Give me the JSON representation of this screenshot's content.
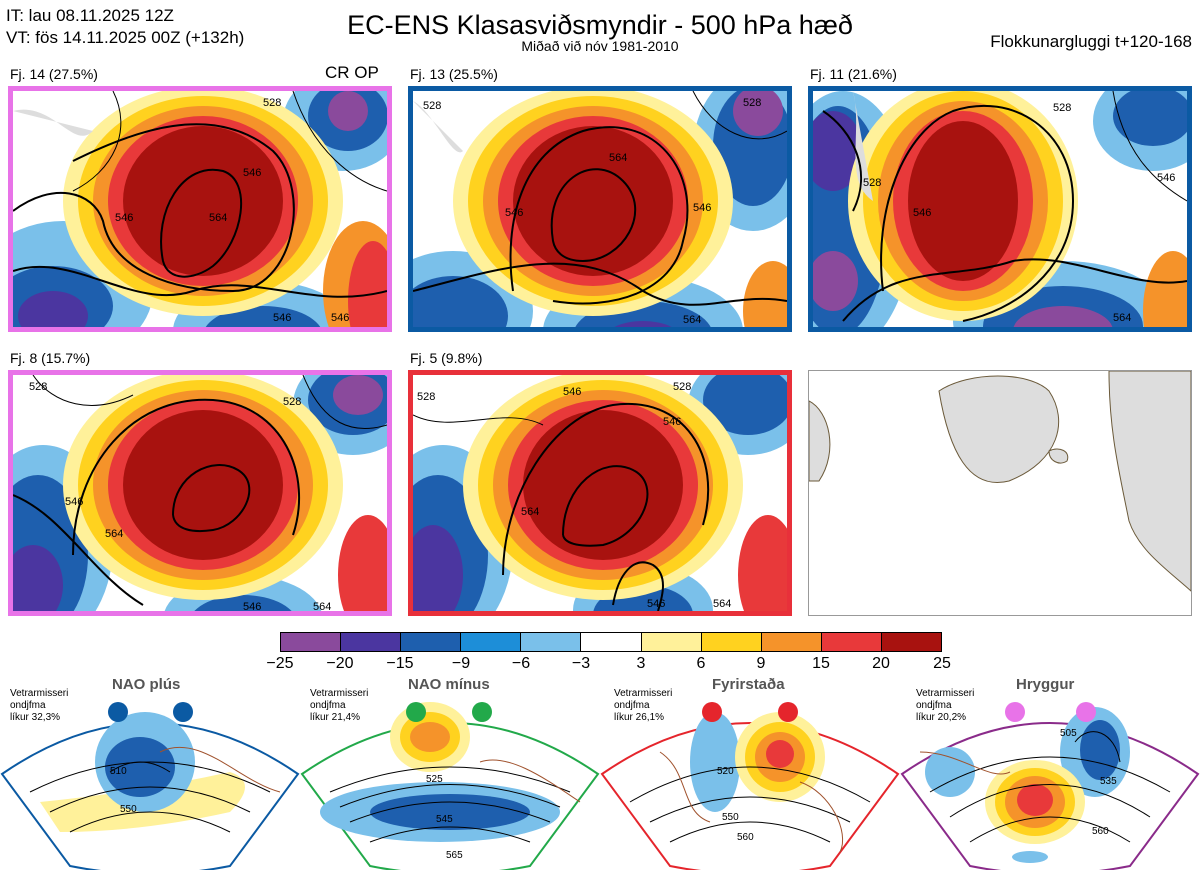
{
  "header": {
    "line1": "IT: lau 08.11.2025 12Z",
    "line2": "VT: fös 14.11.2025 00Z  (+132h)",
    "title": "EC-ENS Klasasviðsmyndir - 500 hPa hæð",
    "subtitle": "Miðað við nóv 1981-2010",
    "window": "Flokkunargluggi t+120-168"
  },
  "panels": [
    {
      "label": "Fj. 14 (27.5%)",
      "extra": "CR OP",
      "border": "#e873e8",
      "contours": [
        "546",
        "564",
        "546",
        "546",
        "528",
        "546"
      ]
    },
    {
      "label": "Fj. 13 (25.5%)",
      "extra": "",
      "border": "#0b5aa3",
      "contours": [
        "528",
        "546",
        "564",
        "546",
        "528",
        "564"
      ]
    },
    {
      "label": "Fj. 11 (21.6%)",
      "extra": "",
      "border": "#0b5aa3",
      "contours": [
        "528",
        "546",
        "528",
        "546",
        "564"
      ]
    },
    {
      "label": "Fj. 8 (15.7%)",
      "extra": "",
      "border": "#e873e8",
      "contours": [
        "528",
        "546",
        "564",
        "528",
        "546",
        "564"
      ]
    },
    {
      "label": "Fj. 5 (9.8%)",
      "extra": "",
      "border": "#e8303a",
      "contours": [
        "528",
        "546",
        "564",
        "546",
        "528",
        "546",
        "564"
      ]
    }
  ],
  "colorbar": {
    "ticks": [
      "−25",
      "−20",
      "−15",
      "−9",
      "−6",
      "−3",
      "3",
      "6",
      "9",
      "15",
      "20",
      "25"
    ],
    "colors": [
      "#8a4a9c",
      "#4b36a0",
      "#1e5fae",
      "#1d8ed8",
      "#7ac0ea",
      "#ffffff",
      "#fff19a",
      "#ffd21f",
      "#f5932a",
      "#e8393a",
      "#a8120f"
    ]
  },
  "regimes": [
    {
      "name": "NAO plús",
      "info1": "Vetrarmisseri",
      "info2": "ondjfma",
      "info3": "líkur 32,3%",
      "dot": "#0b5aa3",
      "border": "#0b5aa3",
      "contours": [
        "510",
        "550"
      ]
    },
    {
      "name": "NAO mínus",
      "info1": "Vetrarmisseri",
      "info2": "ondjfma",
      "info3": "líkur 21,4%",
      "dot": "#22a94a",
      "border": "#22a94a",
      "contours": [
        "525",
        "545",
        "565"
      ]
    },
    {
      "name": "Fyrirstaða",
      "info1": "Vetrarmisseri",
      "info2": "ondjfma",
      "info3": "líkur 26,1%",
      "dot": "#e5252c",
      "border": "#e5252c",
      "contours": [
        "520",
        "550",
        "560"
      ]
    },
    {
      "name": "Hryggur",
      "info1": "Vetrarmisseri",
      "info2": "ondjfma",
      "info3": "líkur 20,2%",
      "dot": "#e873e8",
      "border": "#8a2b8a",
      "contours": [
        "505",
        "535",
        "560"
      ]
    }
  ]
}
